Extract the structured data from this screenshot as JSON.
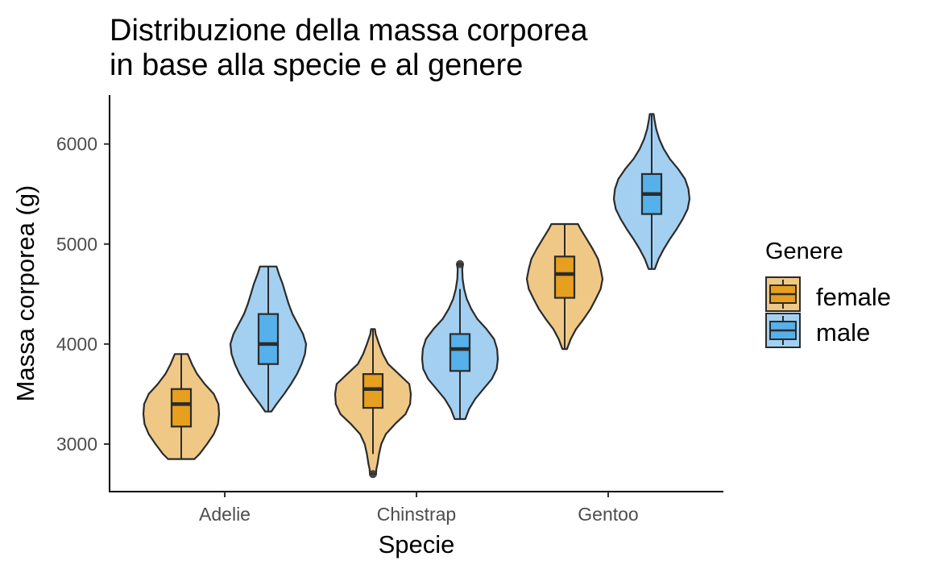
{
  "chart_data": {
    "type": "violin",
    "title_lines": [
      "Distribuzione della massa corporea",
      "in base alla specie e al genere"
    ],
    "xlabel": "Specie",
    "ylabel": "Massa corporea (g)",
    "categories": [
      "Adelie",
      "Chinstrap",
      "Gentoo"
    ],
    "y_ticks": [
      3000,
      4000,
      5000,
      6000
    ],
    "ylim": [
      2530,
      6480
    ],
    "grid": false,
    "legend": {
      "title": "Genere",
      "position": "right",
      "entries": [
        "female",
        "male"
      ]
    },
    "colors": {
      "female_violin": "#f0c886",
      "female_box": "#e69f1e",
      "male_violin": "#a3d0f1",
      "male_box": "#56b0e9",
      "outline": "#2b2b2b"
    },
    "series": [
      {
        "name": "female",
        "groups": [
          {
            "category": "Adelie",
            "min": 2850,
            "q1": 3175,
            "median": 3400,
            "q3": 3550,
            "max": 3900,
            "outliers": [],
            "density": [
              [
                2850,
                0.35
              ],
              [
                2900,
                0.48
              ],
              [
                3000,
                0.68
              ],
              [
                3100,
                0.86
              ],
              [
                3200,
                0.97
              ],
              [
                3300,
                1.0
              ],
              [
                3400,
                0.98
              ],
              [
                3500,
                0.86
              ],
              [
                3600,
                0.62
              ],
              [
                3700,
                0.42
              ],
              [
                3800,
                0.28
              ],
              [
                3900,
                0.17
              ]
            ]
          },
          {
            "category": "Chinstrap",
            "min": 2900,
            "q1": 3362,
            "median": 3550,
            "q3": 3700,
            "max": 4150,
            "outliers": [
              2700
            ],
            "density": [
              [
                2700,
                0.08
              ],
              [
                2750,
                0.09
              ],
              [
                2800,
                0.12
              ],
              [
                2900,
                0.16
              ],
              [
                3000,
                0.22
              ],
              [
                3100,
                0.34
              ],
              [
                3200,
                0.58
              ],
              [
                3300,
                0.86
              ],
              [
                3400,
                0.98
              ],
              [
                3500,
                1.0
              ],
              [
                3600,
                0.96
              ],
              [
                3700,
                0.68
              ],
              [
                3800,
                0.4
              ],
              [
                3900,
                0.26
              ],
              [
                4000,
                0.16
              ],
              [
                4100,
                0.07
              ],
              [
                4150,
                0.05
              ]
            ]
          },
          {
            "category": "Gentoo",
            "min": 3950,
            "q1": 4462,
            "median": 4700,
            "q3": 4875,
            "max": 5200,
            "outliers": [],
            "density": [
              [
                3950,
                0.06
              ],
              [
                4050,
                0.16
              ],
              [
                4150,
                0.3
              ],
              [
                4250,
                0.5
              ],
              [
                4350,
                0.68
              ],
              [
                4450,
                0.82
              ],
              [
                4550,
                0.95
              ],
              [
                4650,
                1.0
              ],
              [
                4750,
                0.95
              ],
              [
                4850,
                0.88
              ],
              [
                4950,
                0.74
              ],
              [
                5050,
                0.58
              ],
              [
                5150,
                0.42
              ],
              [
                5200,
                0.35
              ]
            ]
          }
        ]
      },
      {
        "name": "male",
        "groups": [
          {
            "category": "Adelie",
            "min": 3325,
            "q1": 3800,
            "median": 4000,
            "q3": 4300,
            "max": 4775,
            "outliers": [],
            "density": [
              [
                3325,
                0.08
              ],
              [
                3400,
                0.22
              ],
              [
                3500,
                0.42
              ],
              [
                3600,
                0.6
              ],
              [
                3700,
                0.76
              ],
              [
                3800,
                0.88
              ],
              [
                3900,
                0.97
              ],
              [
                4000,
                1.0
              ],
              [
                4100,
                0.92
              ],
              [
                4200,
                0.78
              ],
              [
                4300,
                0.64
              ],
              [
                4400,
                0.54
              ],
              [
                4500,
                0.46
              ],
              [
                4600,
                0.38
              ],
              [
                4700,
                0.28
              ],
              [
                4775,
                0.22
              ]
            ]
          },
          {
            "category": "Chinstrap",
            "min": 3250,
            "q1": 3731,
            "median": 3950,
            "q3": 4100,
            "max": 4550,
            "outliers": [
              4800
            ],
            "density": [
              [
                3250,
                0.14
              ],
              [
                3350,
                0.24
              ],
              [
                3450,
                0.4
              ],
              [
                3550,
                0.62
              ],
              [
                3650,
                0.84
              ],
              [
                3750,
                0.97
              ],
              [
                3850,
                1.0
              ],
              [
                3950,
                0.98
              ],
              [
                4050,
                0.9
              ],
              [
                4150,
                0.7
              ],
              [
                4250,
                0.46
              ],
              [
                4350,
                0.3
              ],
              [
                4450,
                0.18
              ],
              [
                4550,
                0.11
              ],
              [
                4650,
                0.07
              ],
              [
                4750,
                0.06
              ],
              [
                4800,
                0.08
              ]
            ]
          },
          {
            "category": "Gentoo",
            "min": 4750,
            "q1": 5300,
            "median": 5500,
            "q3": 5700,
            "max": 6300,
            "outliers": [],
            "density": [
              [
                4750,
                0.08
              ],
              [
                4850,
                0.18
              ],
              [
                4950,
                0.32
              ],
              [
                5050,
                0.48
              ],
              [
                5150,
                0.66
              ],
              [
                5250,
                0.82
              ],
              [
                5350,
                0.95
              ],
              [
                5450,
                1.0
              ],
              [
                5550,
                0.97
              ],
              [
                5650,
                0.88
              ],
              [
                5750,
                0.7
              ],
              [
                5850,
                0.48
              ],
              [
                5950,
                0.32
              ],
              [
                6050,
                0.2
              ],
              [
                6150,
                0.12
              ],
              [
                6250,
                0.07
              ],
              [
                6300,
                0.05
              ]
            ]
          }
        ]
      }
    ]
  }
}
